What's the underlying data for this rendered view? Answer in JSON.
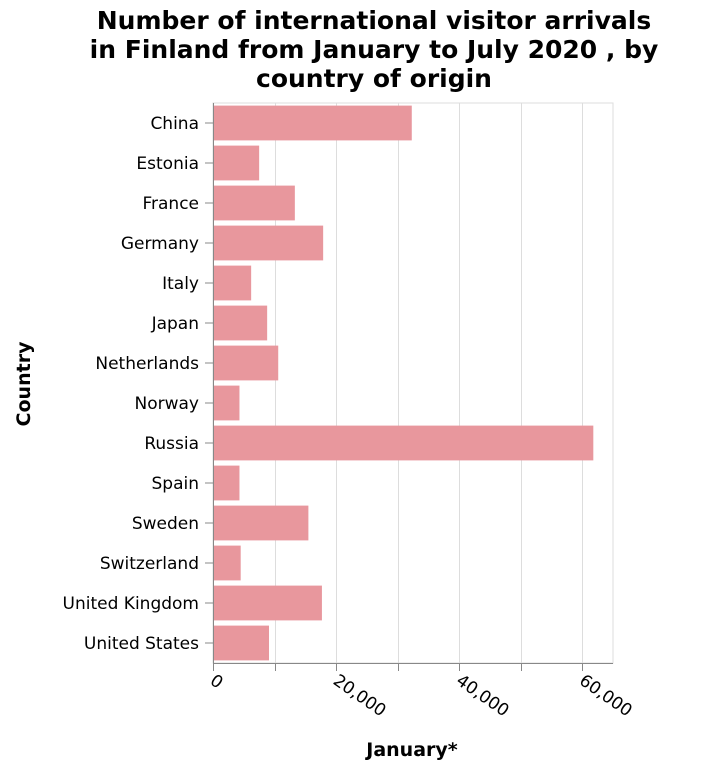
{
  "chart_data": {
    "type": "bar",
    "orientation": "horizontal",
    "title_lines": [
      "Number of international visitor arrivals",
      "in Finland from January to July 2020 , by",
      "country of origin"
    ],
    "xlabel": "January*",
    "ylabel": "Country",
    "categories": [
      "China",
      "Estonia",
      "France",
      "Germany",
      "Italy",
      "Japan",
      "Netherlands",
      "Norway",
      "Russia",
      "Spain",
      "Sweden",
      "Switzerland",
      "United Kingdom",
      "United States"
    ],
    "values": [
      32300,
      7500,
      13300,
      17900,
      6200,
      8800,
      10600,
      4300,
      61800,
      4300,
      15500,
      4500,
      17700,
      9100
    ],
    "xlim": [
      0,
      65000
    ],
    "xticks": [
      0,
      20000,
      40000,
      60000
    ],
    "xtick_labels": [
      "0",
      "20,000",
      "40,000",
      "60,000"
    ],
    "grid": true,
    "colors": {
      "bar": "#e8979d",
      "grid": "#dddddd",
      "axis": "#888888"
    }
  }
}
